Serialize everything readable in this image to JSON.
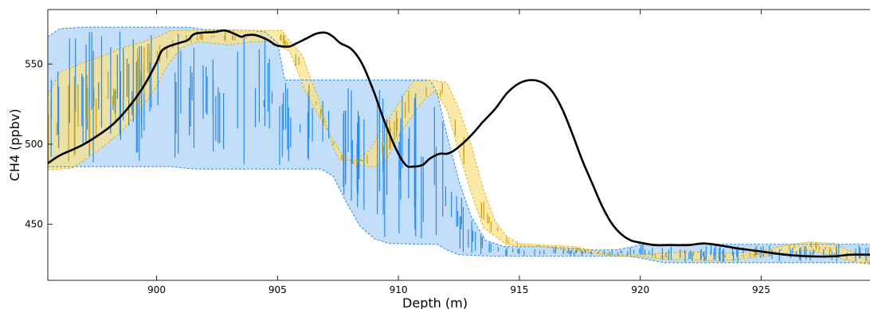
{
  "chart_data": {
    "type": "line",
    "title": "",
    "xlabel": "Depth (m)",
    "ylabel": "CH4 (ppbv)",
    "xlim": [
      895.5,
      929.5
    ],
    "ylim": [
      415,
      584
    ],
    "x_ticks": [
      900,
      905,
      910,
      915,
      920,
      925
    ],
    "y_ticks": [
      450,
      500,
      550
    ],
    "grid": false,
    "legend": "none",
    "colors": {
      "blue_band_fill": "#bcdaf8",
      "blue_band_edge": "#2f8ae8",
      "blue_spikes": "#2b8ae8",
      "yellow_band_fill": "#f8e18a",
      "yellow_band_edge": "#e2b21a",
      "yellow_spikes": "#c9a012",
      "smooth_line": "#000000",
      "axes": "#222222"
    },
    "series": [
      {
        "type": "band",
        "upper": [
          [
            895.5,
            567
          ],
          [
            896,
            572
          ],
          [
            897,
            573
          ],
          [
            900,
            573
          ],
          [
            901.3,
            573
          ],
          [
            902,
            571.5
          ],
          [
            904,
            571
          ],
          [
            904.5,
            570
          ],
          [
            905,
            563
          ],
          [
            905.3,
            540
          ],
          [
            911.3,
            540
          ],
          [
            911.6,
            532
          ],
          [
            912,
            506
          ],
          [
            912.5,
            477
          ],
          [
            913,
            455
          ],
          [
            913.6,
            440
          ],
          [
            914.4,
            436
          ],
          [
            915,
            436
          ],
          [
            916,
            436
          ],
          [
            917,
            435
          ],
          [
            918,
            434
          ],
          [
            919,
            434
          ],
          [
            919.7,
            436
          ],
          [
            920,
            437.5
          ],
          [
            929.5,
            437.5
          ]
        ],
        "lower": [
          [
            895.5,
            486
          ],
          [
            900,
            486
          ],
          [
            900.6,
            486
          ],
          [
            901.2,
            485
          ],
          [
            901.6,
            484.5
          ],
          [
            905,
            484.5
          ],
          [
            906,
            484.5
          ],
          [
            906.8,
            484.5
          ],
          [
            907.3,
            480
          ],
          [
            907.8,
            465
          ],
          [
            908.4,
            449
          ],
          [
            909,
            441
          ],
          [
            909.6,
            438
          ],
          [
            911,
            437.5
          ],
          [
            911.6,
            437.5
          ],
          [
            912,
            434
          ],
          [
            912.5,
            431
          ],
          [
            914,
            430
          ],
          [
            919.5,
            430
          ],
          [
            920,
            429
          ],
          [
            921,
            426
          ],
          [
            929.5,
            426
          ]
        ]
      },
      {
        "type": "band",
        "upper": [
          [
            895.5,
            530
          ],
          [
            896,
            545
          ],
          [
            897,
            551
          ],
          [
            898,
            556
          ],
          [
            898.5,
            560
          ],
          [
            899.5,
            564
          ],
          [
            900.2,
            568
          ],
          [
            900.6,
            571
          ],
          [
            905.2,
            571
          ],
          [
            905.4,
            566
          ],
          [
            906,
            556
          ],
          [
            906.7,
            528
          ],
          [
            907.3,
            498
          ],
          [
            907.6,
            490
          ],
          [
            908.2,
            490
          ],
          [
            908.8,
            496
          ],
          [
            909.5,
            513
          ],
          [
            910.2,
            530
          ],
          [
            910.6,
            539
          ],
          [
            911.4,
            540
          ],
          [
            912,
            538.5
          ],
          [
            912.5,
            522
          ],
          [
            913,
            500
          ],
          [
            913.5,
            472
          ],
          [
            914,
            452
          ],
          [
            914.5,
            442
          ],
          [
            915,
            438
          ],
          [
            916,
            437
          ],
          [
            917.3,
            436
          ],
          [
            918.2,
            433
          ],
          [
            919,
            431
          ],
          [
            920,
            431
          ],
          [
            921,
            432
          ],
          [
            922,
            433
          ],
          [
            923,
            432
          ],
          [
            924,
            432
          ],
          [
            925,
            433
          ],
          [
            926,
            437
          ],
          [
            927,
            439
          ],
          [
            928,
            438
          ],
          [
            928.7,
            433
          ],
          [
            929.5,
            429
          ]
        ],
        "lower": [
          [
            895.5,
            484
          ],
          [
            896.5,
            485
          ],
          [
            897.5,
            495
          ],
          [
            898.5,
            507
          ],
          [
            899.5,
            525
          ],
          [
            900,
            536
          ],
          [
            900.4,
            548
          ],
          [
            901,
            560
          ],
          [
            901.7,
            564
          ],
          [
            903,
            562
          ],
          [
            904,
            564
          ],
          [
            904.7,
            564
          ],
          [
            905.5,
            558
          ],
          [
            906.2,
            531
          ],
          [
            907,
            510
          ],
          [
            907.6,
            495
          ],
          [
            908.2,
            487
          ],
          [
            909,
            486
          ],
          [
            909.5,
            490
          ],
          [
            910,
            505
          ],
          [
            911,
            527
          ],
          [
            911.5,
            533
          ],
          [
            912,
            522
          ],
          [
            912.5,
            495
          ],
          [
            913,
            470
          ],
          [
            913.5,
            448
          ],
          [
            914.5,
            437
          ],
          [
            916,
            436
          ],
          [
            917,
            434
          ],
          [
            918,
            432
          ],
          [
            919,
            430
          ],
          [
            920,
            430
          ],
          [
            921,
            428
          ],
          [
            922,
            428
          ],
          [
            923,
            427
          ],
          [
            924,
            428
          ],
          [
            925,
            430
          ],
          [
            926,
            432
          ],
          [
            927,
            434
          ],
          [
            928,
            430
          ],
          [
            929,
            426
          ],
          [
            929.5,
            425
          ]
        ]
      },
      {
        "type": "line",
        "points": [
          [
            895.5,
            488
          ],
          [
            896,
            493
          ],
          [
            897,
            500
          ],
          [
            898,
            510
          ],
          [
            898.5,
            517
          ],
          [
            899,
            526
          ],
          [
            899.5,
            537
          ],
          [
            900,
            551
          ],
          [
            900.2,
            558
          ],
          [
            900.5,
            561
          ],
          [
            900.9,
            563
          ],
          [
            901.3,
            565
          ],
          [
            901.6,
            569
          ],
          [
            902.4,
            570
          ],
          [
            902.8,
            571
          ],
          [
            903.2,
            569
          ],
          [
            903.5,
            567
          ],
          [
            903.7,
            568
          ],
          [
            904.1,
            568
          ],
          [
            904.6,
            565
          ],
          [
            904.9,
            562
          ],
          [
            905.2,
            561
          ],
          [
            905.5,
            561
          ],
          [
            905.8,
            563
          ],
          [
            906.2,
            566
          ],
          [
            906.6,
            569
          ],
          [
            907.0,
            569.5
          ],
          [
            907.3,
            567
          ],
          [
            907.6,
            563
          ],
          [
            908.0,
            560
          ],
          [
            908.3,
            555
          ],
          [
            908.6,
            547
          ],
          [
            909.0,
            532
          ],
          [
            909.4,
            515
          ],
          [
            909.9,
            497
          ],
          [
            910.3,
            487
          ],
          [
            910.6,
            486
          ],
          [
            911.0,
            487
          ],
          [
            911.3,
            491
          ],
          [
            911.7,
            494
          ],
          [
            912.0,
            494
          ],
          [
            912.3,
            496
          ],
          [
            912.7,
            501
          ],
          [
            913.1,
            507
          ],
          [
            913.5,
            514
          ],
          [
            914.0,
            522
          ],
          [
            914.5,
            532
          ],
          [
            915.0,
            538
          ],
          [
            915.5,
            540
          ],
          [
            916.0,
            538
          ],
          [
            916.4,
            532
          ],
          [
            916.8,
            521
          ],
          [
            917.2,
            506
          ],
          [
            917.6,
            490
          ],
          [
            918.0,
            476
          ],
          [
            918.4,
            462
          ],
          [
            918.8,
            451
          ],
          [
            919.2,
            444
          ],
          [
            919.6,
            440
          ],
          [
            920.0,
            438.5
          ],
          [
            920.6,
            437
          ],
          [
            921.2,
            437
          ],
          [
            922.0,
            437
          ],
          [
            922.6,
            438
          ],
          [
            923.2,
            437
          ],
          [
            924.0,
            435
          ],
          [
            925.0,
            433
          ],
          [
            926.0,
            431
          ],
          [
            927.0,
            430
          ],
          [
            928.0,
            430
          ],
          [
            928.7,
            431
          ],
          [
            929.5,
            431
          ]
        ]
      }
    ]
  }
}
